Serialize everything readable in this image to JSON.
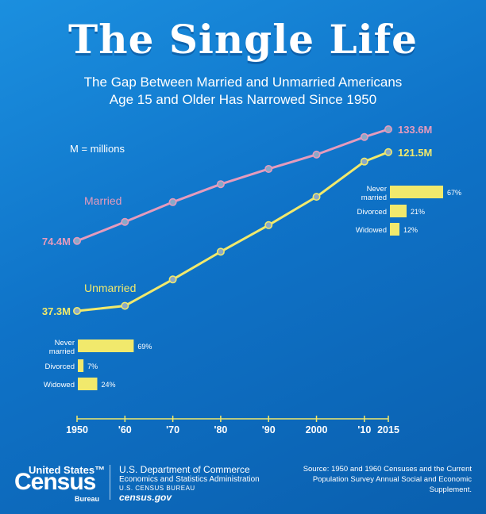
{
  "title": "The Single Life",
  "subtitle_line1": "The Gap Between Married and Unmarried Americans",
  "subtitle_line2": "Age 15 and Older Has Narrowed Since 1950",
  "legend_note": "M = millions",
  "colors": {
    "married": "#e59bbd",
    "unmarried": "#f1e96c",
    "bar": "#f1e96c",
    "axis": "#f1e96c",
    "text": "#ffffff"
  },
  "chart_data": {
    "type": "line",
    "x": [
      1950,
      1960,
      1970,
      1980,
      1990,
      2000,
      2010,
      2015
    ],
    "x_tick_labels": [
      "1950",
      "'60",
      "'70",
      "'80",
      "'90",
      "2000",
      "'10",
      "2015"
    ],
    "ylabel": "",
    "series": [
      {
        "name": "Married",
        "values": [
          74.4,
          84.5,
          95.0,
          104.5,
          112.6,
          120.2,
          129.5,
          133.6
        ],
        "start_label": "74.4M",
        "end_label": "133.6M"
      },
      {
        "name": "Unmarried",
        "values": [
          37.3,
          40.0,
          54.0,
          68.7,
          82.8,
          97.8,
          116.5,
          121.5
        ],
        "start_label": "37.3M",
        "end_label": "121.5M"
      }
    ],
    "unmarried_breakdown_1950": {
      "type": "bar",
      "categories": [
        "Never married",
        "Divorced",
        "Widowed"
      ],
      "values": [
        69,
        7,
        24
      ],
      "value_labels": [
        "69%",
        "7%",
        "24%"
      ]
    },
    "unmarried_breakdown_2015": {
      "type": "bar",
      "categories": [
        "Never married",
        "Divorced",
        "Widowed"
      ],
      "values": [
        67,
        21,
        12
      ],
      "value_labels": [
        "67%",
        "21%",
        "12%"
      ]
    }
  },
  "footer": {
    "logo_top": "United States™",
    "logo_main": "Census",
    "logo_bureau": "Bureau",
    "dept_line1": "U.S. Department of Commerce",
    "dept_line2": "Economics and Statistics Administration",
    "dept_line3": "U.S. CENSUS BUREAU",
    "dept_line4": "census.gov",
    "source": "Source: 1950 and 1960 Censuses and the Current Population Survey Annual Social and Economic Supplement."
  }
}
